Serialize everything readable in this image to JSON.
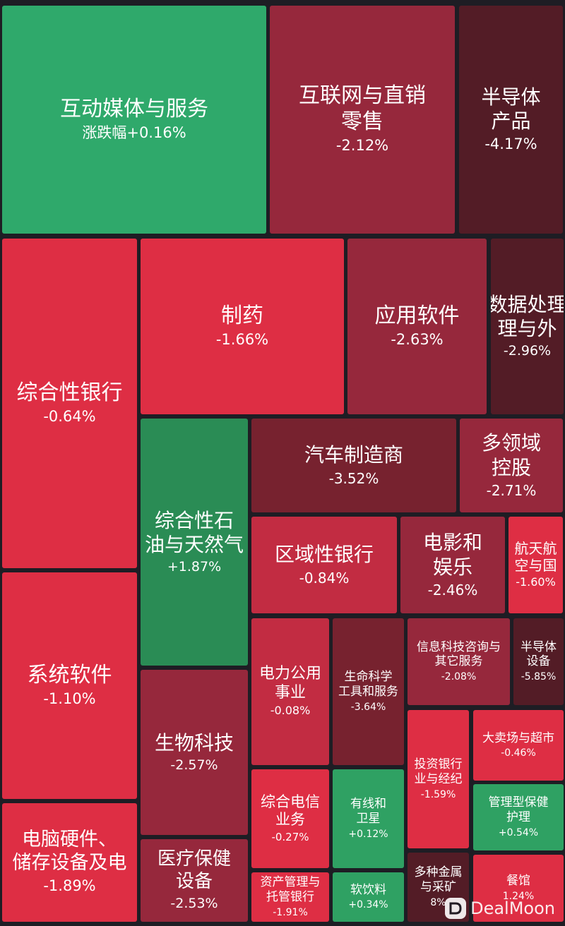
{
  "colors": {
    "background": "#1e1d24",
    "up_strong": "#2fa96b",
    "up_medium": "#2fa163",
    "up_deep": "#2a8c55",
    "down_light": "#de2e44",
    "down_medium": "#c22c42",
    "down_dark": "#96283c",
    "down_darker": "#77222f",
    "down_darkest": "#531c26"
  },
  "watermark": {
    "text": "DealMoon"
  },
  "chart_data": {
    "type": "treemap",
    "value_label": "涨跌幅",
    "cells": [
      {
        "name": "互动媒体与服务",
        "change": "+0.16%",
        "change_pct": 0.16,
        "prefix": "涨跌幅"
      },
      {
        "name": "互联网与直销零售",
        "change": "-2.12%",
        "change_pct": -2.12
      },
      {
        "name": "半导体产品",
        "change": "-4.17%",
        "change_pct": -4.17
      },
      {
        "name": "综合性银行",
        "change": "-0.64%",
        "change_pct": -0.64
      },
      {
        "name": "制药",
        "change": "-1.66%",
        "change_pct": -1.66
      },
      {
        "name": "应用软件",
        "change": "-2.63%",
        "change_pct": -2.63
      },
      {
        "name": "数据处理与外",
        "change": "-2.96%",
        "change_pct": -2.96
      },
      {
        "name": "综合性石油与天然气",
        "change": "+1.87%",
        "change_pct": 1.87
      },
      {
        "name": "汽车制造商",
        "change": "-3.52%",
        "change_pct": -3.52
      },
      {
        "name": "多领域控股",
        "change": "-2.71%",
        "change_pct": -2.71
      },
      {
        "name": "区域性银行",
        "change": "-0.84%",
        "change_pct": -0.84
      },
      {
        "name": "电影和娱乐",
        "change": "-2.46%",
        "change_pct": -2.46
      },
      {
        "name": "航天航空与国",
        "change": "-1.60%",
        "change_pct": -1.6
      },
      {
        "name": "系统软件",
        "change": "-1.10%",
        "change_pct": -1.1
      },
      {
        "name": "电力公用事业",
        "change": "-0.08%",
        "change_pct": -0.08
      },
      {
        "name": "生命科学工具和服务",
        "change": "-3.64%",
        "change_pct": -3.64
      },
      {
        "name": "信息科技咨询与其它服务",
        "change": "-2.08%",
        "change_pct": -2.08
      },
      {
        "name": "半导体设备",
        "change": "-5.85%",
        "change_pct": -5.85
      },
      {
        "name": "生物科技",
        "change": "-2.57%",
        "change_pct": -2.57
      },
      {
        "name": "投资银行业与经纪",
        "change": "-1.59%",
        "change_pct": -1.59
      },
      {
        "name": "大卖场与超市",
        "change": "-0.46%",
        "change_pct": -0.46
      },
      {
        "name": "综合电信业务",
        "change": "-0.27%",
        "change_pct": -0.27
      },
      {
        "name": "有线和卫星",
        "change": "+0.12%",
        "change_pct": 0.12
      },
      {
        "name": "管理型保健护理",
        "change": "+0.54%",
        "change_pct": 0.54
      },
      {
        "name": "电脑硬件、储存设备及电",
        "change": "-1.89%",
        "change_pct": -1.89
      },
      {
        "name": "医疗保健设备",
        "change": "-2.53%",
        "change_pct": -2.53
      },
      {
        "name": "资产管理与托管银行",
        "change": "-1.91%",
        "change_pct": -1.91
      },
      {
        "name": "软饮料",
        "change": "+0.34%",
        "change_pct": 0.34
      },
      {
        "name": "多种金属与采矿",
        "change": "8%",
        "change_pct": null
      },
      {
        "name": "餐馆",
        "change": "1.24%",
        "change_pct": null
      }
    ]
  }
}
